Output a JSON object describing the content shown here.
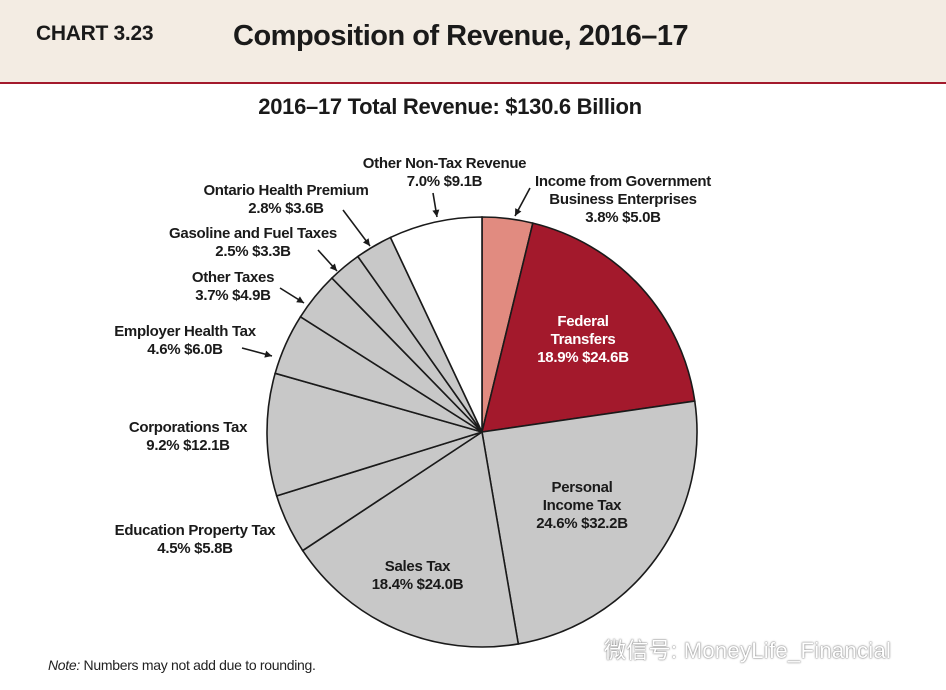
{
  "header": {
    "chart_label": "CHART 3.23",
    "title": "Composition of Revenue, 2016–17"
  },
  "chart_data": {
    "type": "pie",
    "title": "Composition of Revenue, 2016–17",
    "subtitle": "2016–17 Total Revenue: $130.6 Billion",
    "unit": "billion dollars",
    "slices": [
      {
        "key": "income_gov_enterprises",
        "name": "Income from Government Business Enterprises",
        "name_lines": [
          "Income from Government",
          "Business Enterprises"
        ],
        "percent": 3.8,
        "value": 5.0,
        "label_value": "3.8%  $5.0B",
        "color": "#e18b80"
      },
      {
        "key": "federal_transfers",
        "name": "Federal Transfers",
        "name_lines": [
          "Federal",
          "Transfers"
        ],
        "percent": 18.9,
        "value": 24.6,
        "label_value": "18.9%  $24.6B",
        "color": "#a3192c"
      },
      {
        "key": "personal_income_tax",
        "name": "Personal Income Tax",
        "name_lines": [
          "Personal",
          "Income Tax"
        ],
        "percent": 24.6,
        "value": 32.2,
        "label_value": "24.6%  $32.2B",
        "color": "#c8c8c8"
      },
      {
        "key": "sales_tax",
        "name": "Sales Tax",
        "name_lines": [
          "Sales Tax"
        ],
        "percent": 18.4,
        "value": 24.0,
        "label_value": "18.4%  $24.0B",
        "color": "#c8c8c8"
      },
      {
        "key": "education_property_tax",
        "name": "Education Property Tax",
        "name_lines": [
          "Education Property Tax"
        ],
        "percent": 4.5,
        "value": 5.8,
        "label_value": "4.5%  $5.8B",
        "color": "#c8c8c8"
      },
      {
        "key": "corporations_tax",
        "name": "Corporations Tax",
        "name_lines": [
          "Corporations Tax"
        ],
        "percent": 9.2,
        "value": 12.1,
        "label_value": "9.2%  $12.1B",
        "color": "#c8c8c8"
      },
      {
        "key": "employer_health_tax",
        "name": "Employer Health Tax",
        "name_lines": [
          "Employer Health Tax"
        ],
        "percent": 4.6,
        "value": 6.0,
        "label_value": "4.6%  $6.0B",
        "color": "#c8c8c8"
      },
      {
        "key": "other_taxes",
        "name": "Other Taxes",
        "name_lines": [
          "Other Taxes"
        ],
        "percent": 3.7,
        "value": 4.9,
        "label_value": "3.7%  $4.9B",
        "color": "#c8c8c8"
      },
      {
        "key": "gasoline_fuel_taxes",
        "name": "Gasoline and Fuel Taxes",
        "name_lines": [
          "Gasoline and Fuel Taxes"
        ],
        "percent": 2.5,
        "value": 3.3,
        "label_value": "2.5%  $3.3B",
        "color": "#c8c8c8"
      },
      {
        "key": "ontario_health_premium",
        "name": "Ontario Health Premium",
        "name_lines": [
          "Ontario Health Premium"
        ],
        "percent": 2.8,
        "value": 3.6,
        "label_value": "2.8%  $3.6B",
        "color": "#c8c8c8"
      },
      {
        "key": "other_non_tax_revenue",
        "name": "Other Non-Tax Revenue",
        "name_lines": [
          "Other Non-Tax Revenue"
        ],
        "percent": 7.0,
        "value": 9.1,
        "label_value": "7.0%  $9.1B",
        "color": "#ffffff"
      }
    ],
    "legend": "none (callout labels)"
  },
  "note": {
    "prefix": "Note:",
    "text": " Numbers may not add due to rounding."
  },
  "watermark": {
    "text": "微信号: MoneyLife_Financial"
  }
}
